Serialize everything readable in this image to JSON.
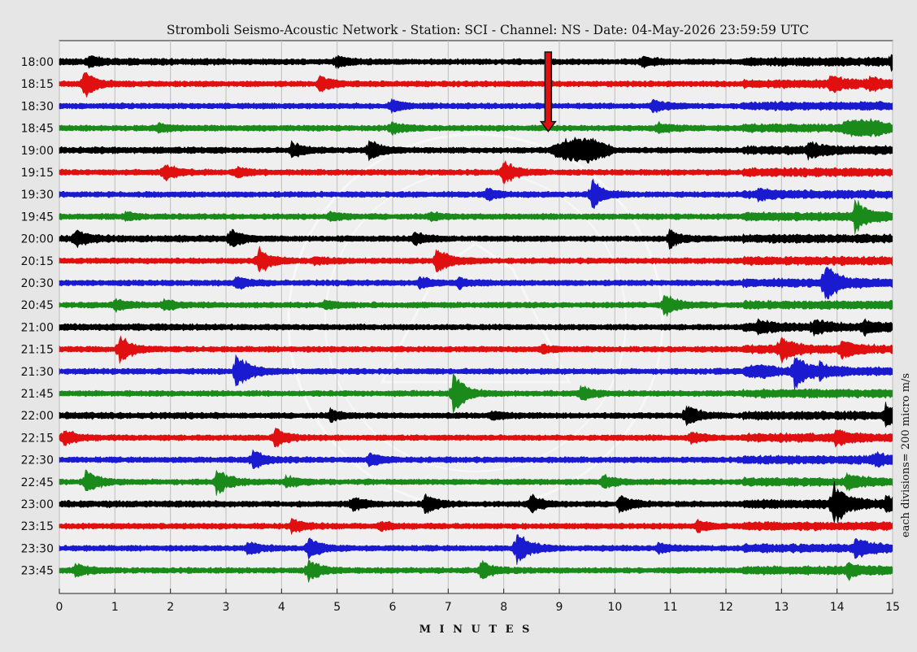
{
  "chart_data": {
    "type": "line",
    "chart_kind": "helicorder",
    "title": "Stromboli Seismo-Acoustic Network - Station: SCI - Channel: NS - Date: 04-May-2026 23:59:59 UTC",
    "xlabel": "M I N U T E S",
    "ylabel_right": "each divisions= 200 micro m/s",
    "xlim": [
      0,
      15
    ],
    "x_ticks": [
      "0",
      "1",
      "2",
      "3",
      "4",
      "5",
      "6",
      "7",
      "8",
      "9",
      "10",
      "11",
      "12",
      "13",
      "14",
      "15"
    ],
    "grid": true,
    "trace_colors": [
      "#000000",
      "#e01010",
      "#1a1ad0",
      "#1a8a1a"
    ],
    "rows": [
      {
        "time": "18:00",
        "color": "#000000",
        "events": [
          [
            0.55,
            0.5
          ],
          [
            5.0,
            0.7
          ],
          [
            10.5,
            0.6
          ],
          [
            15.0,
            0.6
          ]
        ],
        "burst": null
      },
      {
        "time": "18:15",
        "color": "#e01010",
        "events": [
          [
            0.45,
            1.4
          ],
          [
            4.7,
            0.9
          ],
          [
            13.9,
            0.8
          ],
          [
            14.6,
            0.6
          ]
        ],
        "burst": null
      },
      {
        "time": "18:30",
        "color": "#1a1ad0",
        "events": [
          [
            6.0,
            0.6
          ],
          [
            10.7,
            0.6
          ]
        ],
        "burst": null
      },
      {
        "time": "18:45",
        "color": "#1a8a1a",
        "events": [
          [
            1.8,
            0.4
          ],
          [
            6.0,
            0.6
          ],
          [
            10.8,
            0.5
          ]
        ],
        "burst": [
          14.0,
          15.0,
          0.8
        ]
      },
      {
        "time": "19:00",
        "color": "#000000",
        "events": [
          [
            4.2,
            0.9
          ],
          [
            5.6,
            1.1
          ],
          [
            13.5,
            0.8
          ]
        ],
        "burst": [
          8.8,
          10.0,
          1.6
        ]
      },
      {
        "time": "19:15",
        "color": "#e01010",
        "events": [
          [
            1.9,
            1.0
          ],
          [
            8.0,
            1.3
          ],
          [
            3.2,
            0.5
          ]
        ],
        "burst": null
      },
      {
        "time": "19:30",
        "color": "#1a1ad0",
        "events": [
          [
            9.6,
            1.6
          ],
          [
            7.7,
            0.6
          ],
          [
            12.6,
            0.5
          ]
        ],
        "burst": null
      },
      {
        "time": "19:45",
        "color": "#1a8a1a",
        "events": [
          [
            14.35,
            1.7
          ],
          [
            1.2,
            0.4
          ],
          [
            4.9,
            0.5
          ],
          [
            6.7,
            0.4
          ]
        ],
        "burst": null
      },
      {
        "time": "20:00",
        "color": "#000000",
        "events": [
          [
            0.3,
            1.0
          ],
          [
            3.1,
            1.0
          ],
          [
            6.4,
            0.7
          ],
          [
            11.0,
            1.0
          ]
        ],
        "burst": null
      },
      {
        "time": "20:15",
        "color": "#e01010",
        "events": [
          [
            3.6,
            1.5
          ],
          [
            6.8,
            1.6
          ],
          [
            4.6,
            0.4
          ]
        ],
        "burst": null
      },
      {
        "time": "20:30",
        "color": "#1a1ad0",
        "events": [
          [
            13.8,
            2.2
          ],
          [
            3.2,
            0.7
          ],
          [
            6.5,
            0.6
          ],
          [
            7.2,
            0.5
          ]
        ],
        "burst": null
      },
      {
        "time": "20:45",
        "color": "#1a8a1a",
        "events": [
          [
            10.9,
            1.4
          ],
          [
            1.0,
            0.7
          ],
          [
            1.9,
            0.6
          ],
          [
            4.8,
            0.4
          ]
        ],
        "burst": null
      },
      {
        "time": "21:00",
        "color": "#000000",
        "events": [
          [
            12.6,
            0.6
          ],
          [
            13.6,
            0.6
          ],
          [
            14.5,
            0.6
          ]
        ],
        "burst": null
      },
      {
        "time": "21:15",
        "color": "#e01010",
        "events": [
          [
            1.1,
            1.6
          ],
          [
            13.0,
            1.3
          ],
          [
            14.1,
            0.8
          ],
          [
            8.7,
            0.4
          ]
        ],
        "burst": null
      },
      {
        "time": "21:30",
        "color": "#1a1ad0",
        "events": [
          [
            3.2,
            2.2
          ],
          [
            13.25,
            2.0
          ],
          [
            13.7,
            0.6
          ]
        ],
        "burst": [
          12.3,
          13.0,
          0.5
        ]
      },
      {
        "time": "21:45",
        "color": "#1a8a1a",
        "events": [
          [
            7.1,
            2.3
          ],
          [
            9.4,
            0.8
          ]
        ],
        "burst": null
      },
      {
        "time": "22:00",
        "color": "#000000",
        "events": [
          [
            4.9,
            0.6
          ],
          [
            11.3,
            1.2
          ],
          [
            14.9,
            1.2
          ],
          [
            7.8,
            0.4
          ]
        ],
        "burst": null
      },
      {
        "time": "22:15",
        "color": "#e01010",
        "events": [
          [
            0.1,
            0.8
          ],
          [
            3.9,
            1.0
          ],
          [
            11.4,
            0.5
          ],
          [
            14.0,
            0.7
          ]
        ],
        "burst": null
      },
      {
        "time": "22:30",
        "color": "#1a1ad0",
        "events": [
          [
            3.5,
            1.1
          ],
          [
            5.6,
            0.6
          ],
          [
            14.7,
            0.6
          ]
        ],
        "burst": null
      },
      {
        "time": "22:45",
        "color": "#1a8a1a",
        "events": [
          [
            0.5,
            1.2
          ],
          [
            2.85,
            1.4
          ],
          [
            4.1,
            0.6
          ],
          [
            9.8,
            0.7
          ],
          [
            14.2,
            0.7
          ]
        ],
        "burst": null
      },
      {
        "time": "23:00",
        "color": "#000000",
        "events": [
          [
            5.3,
            0.7
          ],
          [
            6.6,
            1.1
          ],
          [
            8.5,
            1.0
          ],
          [
            10.1,
            1.0
          ],
          [
            13.95,
            2.4
          ],
          [
            14.9,
            0.8
          ]
        ],
        "burst": null
      },
      {
        "time": "23:15",
        "color": "#e01010",
        "events": [
          [
            4.2,
            0.8
          ],
          [
            5.8,
            0.4
          ],
          [
            11.5,
            0.6
          ]
        ],
        "burst": null
      },
      {
        "time": "23:30",
        "color": "#1a1ad0",
        "events": [
          [
            3.4,
            0.7
          ],
          [
            4.5,
            1.2
          ],
          [
            8.25,
            2.0
          ],
          [
            14.35,
            1.0
          ],
          [
            10.8,
            0.5
          ]
        ],
        "burst": null
      },
      {
        "time": "23:45",
        "color": "#1a8a1a",
        "events": [
          [
            0.3,
            0.7
          ],
          [
            4.5,
            1.2
          ],
          [
            7.6,
            1.0
          ],
          [
            14.2,
            0.7
          ]
        ],
        "burst": null
      }
    ],
    "annotation": {
      "type": "arrow",
      "color": "#e01010",
      "x_minute": 8.8,
      "row": "18:45"
    }
  }
}
